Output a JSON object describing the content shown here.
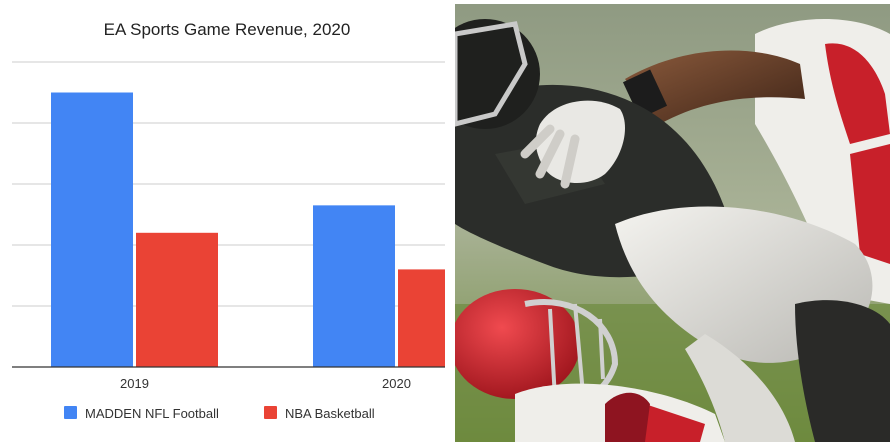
{
  "chart_data": {
    "type": "bar",
    "title": "EA Sports Game Revenue, 2020",
    "categories": [
      "2019",
      "2020"
    ],
    "series": [
      {
        "name": "MADDEN NFL Football",
        "values": [
          90,
          53
        ],
        "color": "#4285f4"
      },
      {
        "name": "NBA Basketball",
        "values": [
          44,
          32
        ],
        "color": "#ea4335"
      }
    ],
    "ylim": [
      0,
      100
    ],
    "xlabel": "",
    "ylabel": "",
    "grid": true,
    "y_tick_labels_visible": false,
    "legend": "bottom"
  },
  "photo": {
    "subject": "football-game-screenshot",
    "colors": {
      "stadium": "#9aa589",
      "field": "#6e8a3e",
      "dark_jersey": "#2b2d2a",
      "white_uniform": "#e7e6e2",
      "red_helmet": "#d4232c",
      "red_jersey": "#c8202a"
    }
  }
}
